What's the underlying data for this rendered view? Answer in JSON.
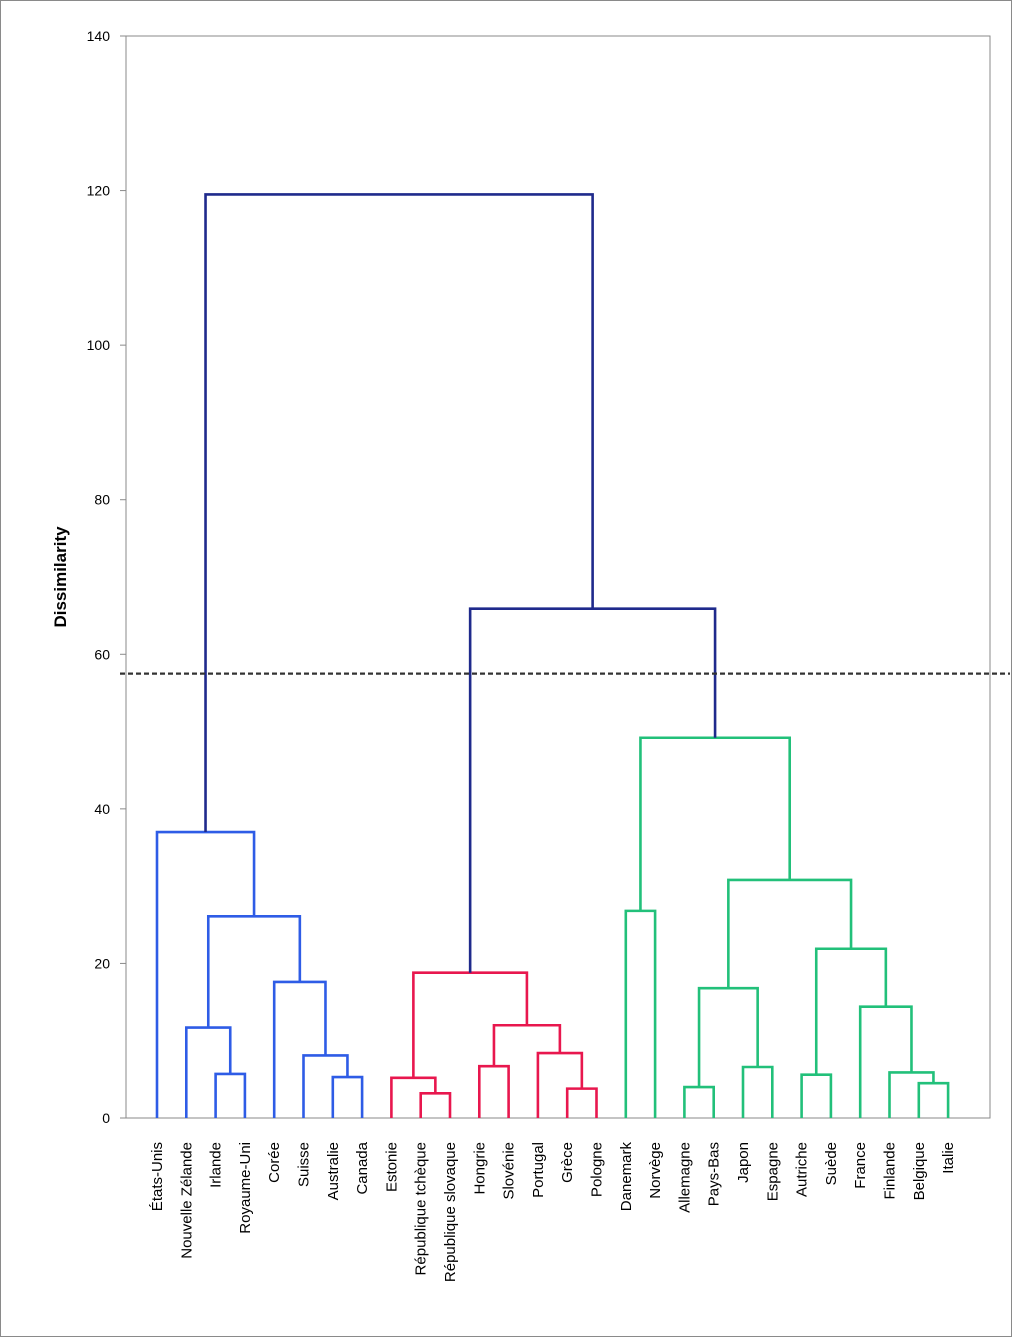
{
  "chart_data": {
    "type": "dendrogram",
    "ylabel": "Dissimilarity",
    "ylim": [
      0,
      140
    ],
    "yticks": [
      0,
      20,
      40,
      60,
      80,
      100,
      120,
      140
    ],
    "cut_line": 57.5,
    "colors": {
      "frame": "#8a8a8a",
      "root": "#1f2a8c",
      "cluster_1": "#2e5ce6",
      "cluster_2": "#e8174e",
      "cluster_3": "#22c07a",
      "cut_line": "#333333"
    },
    "leaves": [
      "États-Unis",
      "Nouvelle Zélande",
      "Irlande",
      "Royaume-Uni",
      "Corée",
      "Suisse",
      "Australie",
      "Canada",
      "Estonie",
      "République tchèque",
      "République slovaque",
      "Hongrie",
      "Slovénie",
      "Portugal",
      "Grèce",
      "Pologne",
      "Danemark",
      "Norvège",
      "Allemagne",
      "Pays-Bas",
      "Japon",
      "Espagne",
      "Autriche",
      "Suède",
      "France",
      "Finlande",
      "Belgique",
      "Italie"
    ],
    "merges": [
      {
        "id": "m1",
        "left": "Irlande",
        "right": "Royaume-Uni",
        "height": 5.7,
        "color": "cluster_1"
      },
      {
        "id": "m2",
        "left": "Nouvelle Zélande",
        "right": "m1",
        "height": 11.7,
        "color": "cluster_1"
      },
      {
        "id": "m3",
        "left": "Australie",
        "right": "Canada",
        "height": 5.3,
        "color": "cluster_1"
      },
      {
        "id": "m4",
        "left": "Suisse",
        "right": "m3",
        "height": 8.1,
        "color": "cluster_1"
      },
      {
        "id": "m5",
        "left": "Corée",
        "right": "m4",
        "height": 17.6,
        "color": "cluster_1"
      },
      {
        "id": "m6",
        "left": "m2",
        "right": "m5",
        "height": 26.1,
        "color": "cluster_1"
      },
      {
        "id": "m7",
        "left": "États-Unis",
        "right": "m6",
        "height": 37.0,
        "color": "cluster_1"
      },
      {
        "id": "m8",
        "left": "République tchèque",
        "right": "République slovaque",
        "height": 3.2,
        "color": "cluster_2"
      },
      {
        "id": "m9",
        "left": "Estonie",
        "right": "m8",
        "height": 5.2,
        "color": "cluster_2"
      },
      {
        "id": "m10",
        "left": "Hongrie",
        "right": "Slovénie",
        "height": 6.7,
        "color": "cluster_2"
      },
      {
        "id": "m11",
        "left": "Grèce",
        "right": "Pologne",
        "height": 3.8,
        "color": "cluster_2"
      },
      {
        "id": "m12",
        "left": "Portugal",
        "right": "m11",
        "height": 8.4,
        "color": "cluster_2"
      },
      {
        "id": "m13",
        "left": "m10",
        "right": "m12",
        "height": 12.0,
        "color": "cluster_2"
      },
      {
        "id": "m14",
        "left": "m9",
        "right": "m13",
        "height": 18.8,
        "color": "cluster_2"
      },
      {
        "id": "m15",
        "left": "Danemark",
        "right": "Norvège",
        "height": 26.8,
        "color": "cluster_3"
      },
      {
        "id": "m16",
        "left": "Allemagne",
        "right": "Pays-Bas",
        "height": 4.0,
        "color": "cluster_3"
      },
      {
        "id": "m17",
        "left": "Japon",
        "right": "Espagne",
        "height": 6.6,
        "color": "cluster_3"
      },
      {
        "id": "m18",
        "left": "m16",
        "right": "m17",
        "height": 16.8,
        "color": "cluster_3"
      },
      {
        "id": "m19",
        "left": "Autriche",
        "right": "Suède",
        "height": 5.6,
        "color": "cluster_3"
      },
      {
        "id": "m20",
        "left": "Belgique",
        "right": "Italie",
        "height": 4.5,
        "color": "cluster_3"
      },
      {
        "id": "m21",
        "left": "Finlande",
        "right": "m20",
        "height": 5.9,
        "color": "cluster_3"
      },
      {
        "id": "m22",
        "left": "France",
        "right": "m21",
        "height": 14.4,
        "color": "cluster_3"
      },
      {
        "id": "m23",
        "left": "m19",
        "right": "m22",
        "height": 21.9,
        "color": "cluster_3"
      },
      {
        "id": "m24",
        "left": "m18",
        "right": "m23",
        "height": 30.8,
        "color": "cluster_3"
      },
      {
        "id": "m25",
        "left": "m15",
        "right": "m24",
        "height": 49.2,
        "color": "cluster_3"
      },
      {
        "id": "m26",
        "left": "m14",
        "right": "m25",
        "height": 65.9,
        "color": "root"
      },
      {
        "id": "m27",
        "left": "m7",
        "right": "m26",
        "height": 119.5,
        "color": "root"
      }
    ]
  }
}
